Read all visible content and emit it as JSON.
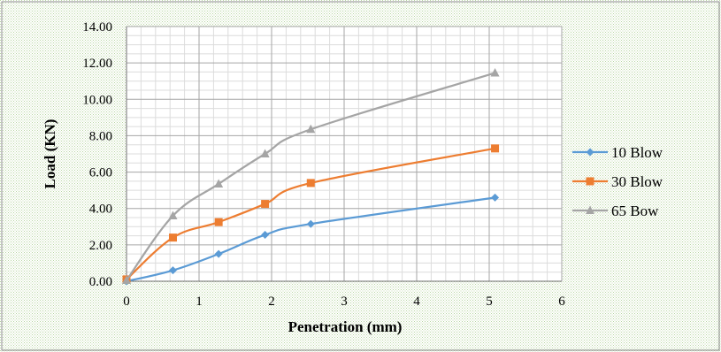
{
  "chart_data": {
    "type": "line",
    "title": "",
    "xlabel": "Penetration (mm)",
    "ylabel": "Load (KN)",
    "xlim": [
      0,
      6
    ],
    "ylim": [
      0,
      14
    ],
    "x_ticks": [
      "0",
      "1",
      "2",
      "3",
      "4",
      "5",
      "6"
    ],
    "y_ticks": [
      "0.00",
      "2.00",
      "4.00",
      "6.00",
      "8.00",
      "10.00",
      "12.00",
      "14.00"
    ],
    "grid": true,
    "smooth": true,
    "legend_position": "right",
    "series": [
      {
        "name": "10 Blow",
        "color": "#5b9bd5",
        "marker": "diamond",
        "x": [
          0,
          0.64,
          1.27,
          1.91,
          2.54,
          5.08
        ],
        "y": [
          0.0,
          0.6,
          1.5,
          2.55,
          3.15,
          4.6
        ]
      },
      {
        "name": "30 Blow",
        "color": "#ed7d31",
        "marker": "square",
        "x": [
          0,
          0.64,
          1.27,
          1.91,
          2.54,
          5.08
        ],
        "y": [
          0.1,
          2.4,
          3.25,
          4.25,
          5.4,
          7.3
        ]
      },
      {
        "name": "65 Bow",
        "color": "#a5a5a5",
        "marker": "triangle",
        "x": [
          0,
          0.64,
          1.27,
          1.91,
          2.54,
          5.08
        ],
        "y": [
          0.05,
          3.6,
          5.35,
          7.0,
          8.35,
          11.45
        ]
      }
    ]
  }
}
